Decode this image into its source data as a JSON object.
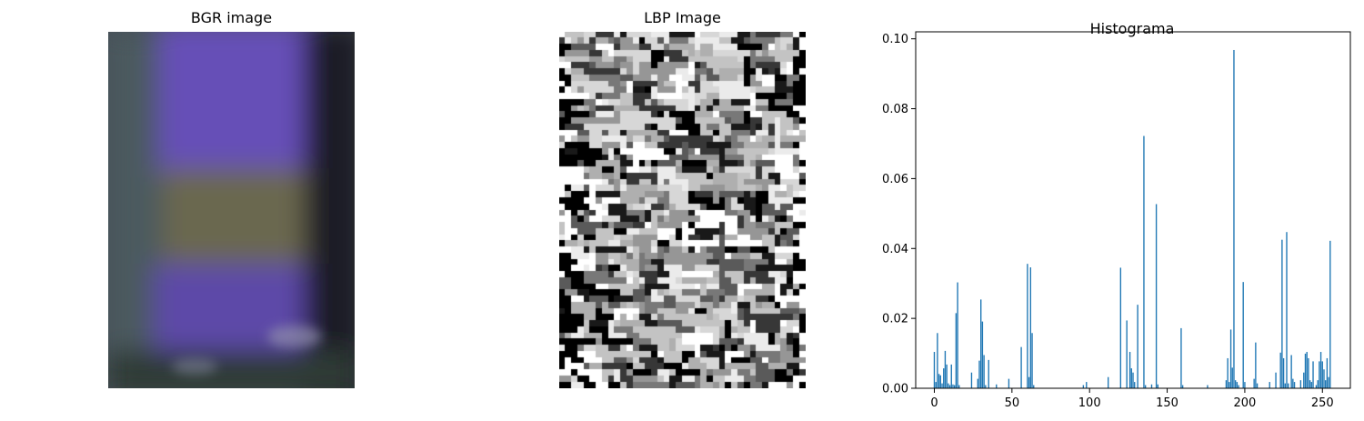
{
  "panels": {
    "bgr_title": "BGR image",
    "lbp_title": "LBP Image",
    "hist_title": "Histograma"
  },
  "colors": {
    "bar": "#1f77b4",
    "bgr_bg": "#45475a",
    "bgr_band_purple": "#6650b7",
    "bgr_band_olive": "#6a6750",
    "bgr_dark": "#1e1a27"
  },
  "chart_data": {
    "type": "bar",
    "title": "Histograma",
    "xlabel": "",
    "ylabel": "",
    "xlim": [
      -12,
      268
    ],
    "ylim": [
      0,
      0.102
    ],
    "xticks": [
      "0",
      "50",
      "100",
      "150",
      "200",
      "250"
    ],
    "yticks": [
      "0.00",
      "0.02",
      "0.04",
      "0.06",
      "0.08",
      "0.10"
    ],
    "bins": [
      0,
      1,
      2,
      3,
      4,
      5,
      6,
      7,
      8,
      9,
      10,
      11,
      12,
      13,
      14,
      15,
      16,
      24,
      28,
      29,
      30,
      31,
      32,
      33,
      35,
      40,
      48,
      56,
      60,
      61,
      62,
      63,
      64,
      96,
      98,
      112,
      120,
      124,
      126,
      127,
      128,
      129,
      131,
      135,
      136,
      140,
      143,
      144,
      159,
      160,
      176,
      188,
      189,
      190,
      191,
      192,
      193,
      194,
      195,
      196,
      199,
      200,
      206,
      207,
      208,
      216,
      220,
      223,
      224,
      225,
      226,
      227,
      228,
      230,
      231,
      232,
      236,
      238,
      239,
      240,
      241,
      242,
      243,
      244,
      246,
      247,
      248,
      249,
      250,
      251,
      252,
      253,
      254,
      255
    ],
    "values": [
      0.0104,
      0.0018,
      0.0158,
      0.0041,
      0.0037,
      0.0014,
      0.0057,
      0.0107,
      0.0068,
      0.0014,
      0.0009,
      0.0068,
      0.0011,
      0.0009,
      0.0215,
      0.0303,
      0.0009,
      0.0045,
      0.0027,
      0.0079,
      0.0254,
      0.0191,
      0.0095,
      0.0009,
      0.0081,
      0.0011,
      0.0027,
      0.0118,
      0.0356,
      0.0032,
      0.0346,
      0.0158,
      0.0009,
      0.0009,
      0.0018,
      0.0032,
      0.0345,
      0.0194,
      0.0104,
      0.0057,
      0.0045,
      0.0018,
      0.0239,
      0.0722,
      0.0009,
      0.0011,
      0.0527,
      0.0011,
      0.0172,
      0.0009,
      0.0009,
      0.0023,
      0.0086,
      0.0018,
      0.0168,
      0.0059,
      0.0968,
      0.0023,
      0.0018,
      0.0009,
      0.0304,
      0.0018,
      0.0027,
      0.0131,
      0.0014,
      0.0018,
      0.0045,
      0.0102,
      0.0425,
      0.0086,
      0.0014,
      0.0447,
      0.0014,
      0.0095,
      0.0027,
      0.0018,
      0.0023,
      0.0045,
      0.0099,
      0.0104,
      0.0086,
      0.0023,
      0.0018,
      0.0077,
      0.0009,
      0.0023,
      0.0077,
      0.0104,
      0.0077,
      0.0054,
      0.0023,
      0.0086,
      0.0032,
      0.0422
    ]
  }
}
